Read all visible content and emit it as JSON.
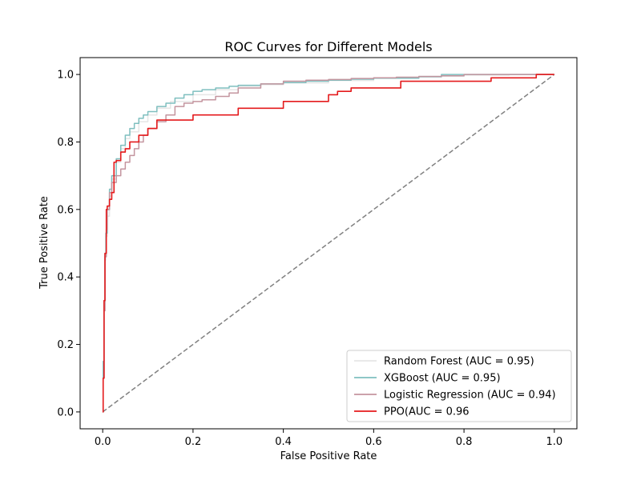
{
  "chart_data": {
    "type": "line",
    "title": "ROC Curves for Different Models",
    "xlabel": "False Positive Rate",
    "ylabel": "True Positive Rate",
    "xlim": [
      -0.05,
      1.05
    ],
    "ylim": [
      -0.05,
      1.05
    ],
    "xticks": [
      "0.0",
      "0.2",
      "0.4",
      "0.6",
      "0.8",
      "1.0"
    ],
    "yticks": [
      "0.0",
      "0.2",
      "0.4",
      "0.6",
      "0.8",
      "1.0"
    ],
    "grid": false,
    "legend_position": "lower-right",
    "diagonal": {
      "x": [
        0,
        1
      ],
      "y": [
        0,
        1
      ],
      "color": "#808080",
      "style": "dashed"
    },
    "series": [
      {
        "name": "Random Forest (AUC = 0.95)",
        "color": "#e6e6e6",
        "x": [
          0,
          0.001,
          0.003,
          0.005,
          0.007,
          0.01,
          0.015,
          0.02,
          0.03,
          0.04,
          0.05,
          0.06,
          0.08,
          0.1,
          0.12,
          0.15,
          0.2,
          0.25,
          0.3,
          0.35,
          0.4,
          0.5,
          0.6,
          0.7,
          0.8,
          0.9,
          1.0
        ],
        "y": [
          0,
          0.12,
          0.3,
          0.45,
          0.52,
          0.58,
          0.64,
          0.69,
          0.74,
          0.78,
          0.81,
          0.83,
          0.86,
          0.88,
          0.9,
          0.92,
          0.94,
          0.955,
          0.965,
          0.97,
          0.975,
          0.982,
          0.99,
          0.995,
          0.998,
          1.0,
          1.0
        ]
      },
      {
        "name": "XGBoost (AUC = 0.95)",
        "color": "#7fbfbf",
        "x": [
          0,
          0.001,
          0.003,
          0.005,
          0.007,
          0.01,
          0.015,
          0.02,
          0.03,
          0.04,
          0.05,
          0.06,
          0.07,
          0.08,
          0.09,
          0.1,
          0.12,
          0.14,
          0.16,
          0.18,
          0.2,
          0.22,
          0.25,
          0.28,
          0.3,
          0.35,
          0.4,
          0.45,
          0.5,
          0.55,
          0.6,
          0.7,
          0.75,
          0.8,
          0.9,
          1.0
        ],
        "y": [
          0,
          0.15,
          0.33,
          0.47,
          0.53,
          0.6,
          0.66,
          0.7,
          0.75,
          0.79,
          0.82,
          0.84,
          0.855,
          0.87,
          0.88,
          0.89,
          0.905,
          0.915,
          0.93,
          0.94,
          0.95,
          0.955,
          0.96,
          0.965,
          0.968,
          0.972,
          0.976,
          0.98,
          0.983,
          0.986,
          0.989,
          0.993,
          1.0,
          1.0,
          1.0,
          1.0
        ]
      },
      {
        "name": "Logistic Regression (AUC = 0.94)",
        "color": "#c4959f",
        "x": [
          0,
          0.001,
          0.003,
          0.005,
          0.008,
          0.01,
          0.015,
          0.02,
          0.03,
          0.04,
          0.05,
          0.06,
          0.07,
          0.08,
          0.09,
          0.1,
          0.12,
          0.14,
          0.16,
          0.18,
          0.2,
          0.22,
          0.25,
          0.28,
          0.3,
          0.35,
          0.4,
          0.45,
          0.5,
          0.55,
          0.6,
          0.65,
          0.7,
          0.75,
          0.8,
          0.9,
          1.0
        ],
        "y": [
          0,
          0.1,
          0.3,
          0.46,
          0.54,
          0.6,
          0.65,
          0.68,
          0.7,
          0.72,
          0.74,
          0.76,
          0.78,
          0.8,
          0.82,
          0.84,
          0.86,
          0.88,
          0.905,
          0.915,
          0.92,
          0.925,
          0.935,
          0.945,
          0.96,
          0.972,
          0.98,
          0.983,
          0.985,
          0.988,
          0.99,
          0.992,
          0.994,
          0.996,
          1.0,
          1.0,
          1.0
        ]
      },
      {
        "name": "PPO(AUC = 0.96",
        "color": "#e41a1c",
        "x": [
          0,
          0.001,
          0.003,
          0.005,
          0.008,
          0.01,
          0.015,
          0.02,
          0.025,
          0.03,
          0.04,
          0.05,
          0.06,
          0.08,
          0.1,
          0.12,
          0.2,
          0.3,
          0.4,
          0.5,
          0.52,
          0.55,
          0.6,
          0.65,
          0.66,
          0.7,
          0.8,
          0.85,
          0.86,
          0.88,
          0.95,
          0.96,
          1.0
        ],
        "y": [
          0,
          0.1,
          0.33,
          0.47,
          0.6,
          0.61,
          0.63,
          0.65,
          0.74,
          0.745,
          0.77,
          0.78,
          0.8,
          0.82,
          0.84,
          0.865,
          0.88,
          0.9,
          0.92,
          0.94,
          0.95,
          0.96,
          0.96,
          0.96,
          0.98,
          0.98,
          0.98,
          0.98,
          0.99,
          0.99,
          0.99,
          1.0,
          1.0
        ]
      }
    ]
  }
}
